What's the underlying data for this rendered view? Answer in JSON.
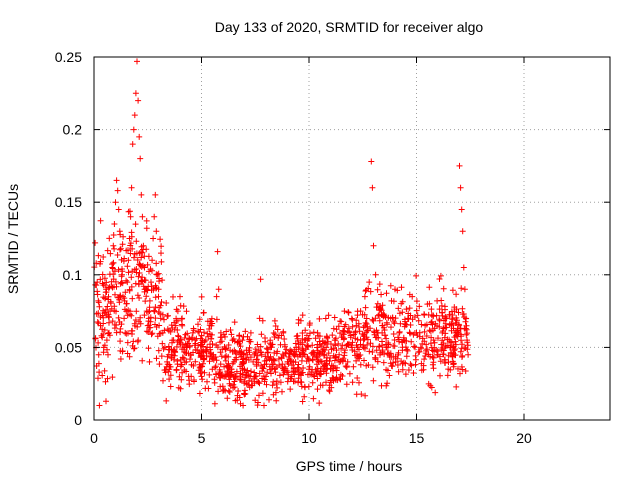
{
  "chart_data": {
    "type": "scatter",
    "title": "Day 133 of 2020, SRMTID for receiver algo",
    "xlabel": "GPS time / hours",
    "ylabel": "SRMTID / TECUs",
    "xlim": [
      0,
      24
    ],
    "ylim": [
      0,
      0.25
    ],
    "xticks": [
      0,
      5,
      10,
      15,
      20
    ],
    "yticks": [
      0,
      0.05,
      0.1,
      0.15,
      0.2,
      0.25
    ],
    "xtick_labels": [
      "0",
      "5",
      "10",
      "15",
      "20"
    ],
    "ytick_labels": [
      "0",
      "0.05",
      "0.1",
      "0.15",
      "0.2",
      "0.25"
    ],
    "grid": true,
    "marker": "+",
    "color": "#ff0000",
    "series": [
      {
        "name": "SRMTID",
        "data_range_x": [
          0,
          17.4
        ],
        "points": [
          [
            0.05,
            0.122
          ],
          [
            0.1,
            0.108
          ],
          [
            0.15,
            0.095
          ],
          [
            0.2,
            0.082
          ],
          [
            0.25,
            0.078
          ],
          [
            0.3,
            0.065
          ],
          [
            0.35,
            0.058
          ],
          [
            0.4,
            0.072
          ],
          [
            0.45,
            0.05
          ],
          [
            0.5,
            0.062
          ],
          [
            0.55,
            0.088
          ],
          [
            0.6,
            0.055
          ],
          [
            0.65,
            0.045
          ],
          [
            0.7,
            0.06
          ],
          [
            0.75,
            0.075
          ],
          [
            0.8,
            0.092
          ],
          [
            0.85,
            0.105
          ],
          [
            0.9,
            0.12
          ],
          [
            0.95,
            0.135
          ],
          [
            1.0,
            0.15
          ],
          [
            1.05,
            0.165
          ],
          [
            1.1,
            0.158
          ],
          [
            1.15,
            0.145
          ],
          [
            1.2,
            0.13
          ],
          [
            1.25,
            0.118
          ],
          [
            1.3,
            0.1
          ],
          [
            1.35,
            0.085
          ],
          [
            1.4,
            0.07
          ],
          [
            1.45,
            0.06
          ],
          [
            1.5,
            0.08
          ],
          [
            1.55,
            0.095
          ],
          [
            1.6,
            0.11
          ],
          [
            1.65,
            0.125
          ],
          [
            1.7,
            0.14
          ],
          [
            1.75,
            0.16
          ],
          [
            1.8,
            0.19
          ],
          [
            1.85,
            0.2
          ],
          [
            1.9,
            0.21
          ],
          [
            1.95,
            0.225
          ],
          [
            2.0,
            0.247
          ],
          [
            2.05,
            0.22
          ],
          [
            2.1,
            0.195
          ],
          [
            2.15,
            0.18
          ],
          [
            2.2,
            0.155
          ],
          [
            2.25,
            0.14
          ],
          [
            2.3,
            0.12
          ],
          [
            2.35,
            0.105
          ],
          [
            2.4,
            0.09
          ],
          [
            2.45,
            0.075
          ],
          [
            2.5,
            0.065
          ],
          [
            2.55,
            0.07
          ],
          [
            2.6,
            0.082
          ],
          [
            2.65,
            0.095
          ],
          [
            2.7,
            0.11
          ],
          [
            2.75,
            0.125
          ],
          [
            2.8,
            0.14
          ],
          [
            2.85,
            0.155
          ],
          [
            2.9,
            0.13
          ],
          [
            2.95,
            0.1
          ],
          [
            3.0,
            0.085
          ],
          [
            3.1,
            0.07
          ],
          [
            3.2,
            0.06
          ],
          [
            3.3,
            0.05
          ],
          [
            3.4,
            0.04
          ],
          [
            3.5,
            0.035
          ],
          [
            3.6,
            0.045
          ],
          [
            3.7,
            0.055
          ],
          [
            3.8,
            0.065
          ],
          [
            3.9,
            0.075
          ],
          [
            4.0,
            0.085
          ],
          [
            4.1,
            0.07
          ],
          [
            4.2,
            0.05
          ],
          [
            4.3,
            0.04
          ],
          [
            4.4,
            0.03
          ],
          [
            4.5,
            0.045
          ],
          [
            4.6,
            0.06
          ],
          [
            4.7,
            0.055
          ],
          [
            4.8,
            0.048
          ],
          [
            4.9,
            0.038
          ],
          [
            5.0,
            0.03
          ],
          [
            5.1,
            0.042
          ],
          [
            5.2,
            0.055
          ],
          [
            5.3,
            0.068
          ],
          [
            5.4,
            0.05
          ],
          [
            5.5,
            0.035
          ],
          [
            5.6,
            0.028
          ],
          [
            5.7,
            0.085
          ],
          [
            5.75,
            0.116
          ],
          [
            5.8,
            0.09
          ],
          [
            5.9,
            0.06
          ],
          [
            6.0,
            0.02
          ],
          [
            6.1,
            0.03
          ],
          [
            6.2,
            0.015
          ],
          [
            6.3,
            0.025
          ],
          [
            6.4,
            0.035
          ],
          [
            6.5,
            0.04
          ],
          [
            6.6,
            0.03
          ],
          [
            6.7,
            0.02
          ],
          [
            6.8,
            0.045
          ],
          [
            6.9,
            0.055
          ],
          [
            7.0,
            0.035
          ],
          [
            7.1,
            0.025
          ],
          [
            7.2,
            0.048
          ],
          [
            7.3,
            0.06
          ],
          [
            7.4,
            0.04
          ],
          [
            7.5,
            0.03
          ],
          [
            7.6,
            0.052
          ],
          [
            7.7,
            0.07
          ],
          [
            7.75,
            0.097
          ],
          [
            7.8,
            0.045
          ],
          [
            8.0,
            0.03
          ],
          [
            8.2,
            0.05
          ],
          [
            8.4,
            0.035
          ],
          [
            8.6,
            0.042
          ],
          [
            8.8,
            0.06
          ],
          [
            9.0,
            0.04
          ],
          [
            9.2,
            0.03
          ],
          [
            9.4,
            0.05
          ],
          [
            9.6,
            0.045
          ],
          [
            9.8,
            0.055
          ],
          [
            10.0,
            0.035
          ],
          [
            10.2,
            0.045
          ],
          [
            10.4,
            0.06
          ],
          [
            10.6,
            0.04
          ],
          [
            10.8,
            0.05
          ],
          [
            11.0,
            0.035
          ],
          [
            11.2,
            0.055
          ],
          [
            11.4,
            0.045
          ],
          [
            11.6,
            0.06
          ],
          [
            11.8,
            0.04
          ],
          [
            12.0,
            0.05
          ],
          [
            12.2,
            0.065
          ],
          [
            12.4,
            0.075
          ],
          [
            12.6,
            0.085
          ],
          [
            12.8,
            0.095
          ],
          [
            12.9,
            0.178
          ],
          [
            12.95,
            0.16
          ],
          [
            13.0,
            0.12
          ],
          [
            13.1,
            0.1
          ],
          [
            13.2,
            0.08
          ],
          [
            13.4,
            0.06
          ],
          [
            13.6,
            0.05
          ],
          [
            13.8,
            0.07
          ],
          [
            14.0,
            0.09
          ],
          [
            14.2,
            0.06
          ],
          [
            14.4,
            0.055
          ],
          [
            14.6,
            0.07
          ],
          [
            14.8,
            0.085
          ],
          [
            15.0,
            0.06
          ],
          [
            15.2,
            0.05
          ],
          [
            15.4,
            0.065
          ],
          [
            15.6,
            0.08
          ],
          [
            15.8,
            0.055
          ],
          [
            16.0,
            0.045
          ],
          [
            16.2,
            0.06
          ],
          [
            16.4,
            0.07
          ],
          [
            16.6,
            0.05
          ],
          [
            16.8,
            0.06
          ],
          [
            17.0,
            0.175
          ],
          [
            17.05,
            0.16
          ],
          [
            17.1,
            0.145
          ],
          [
            17.15,
            0.13
          ],
          [
            17.2,
            0.105
          ],
          [
            17.25,
            0.09
          ],
          [
            17.3,
            0.07
          ],
          [
            17.35,
            0.055
          ],
          [
            17.4,
            0.045
          ]
        ]
      }
    ]
  }
}
